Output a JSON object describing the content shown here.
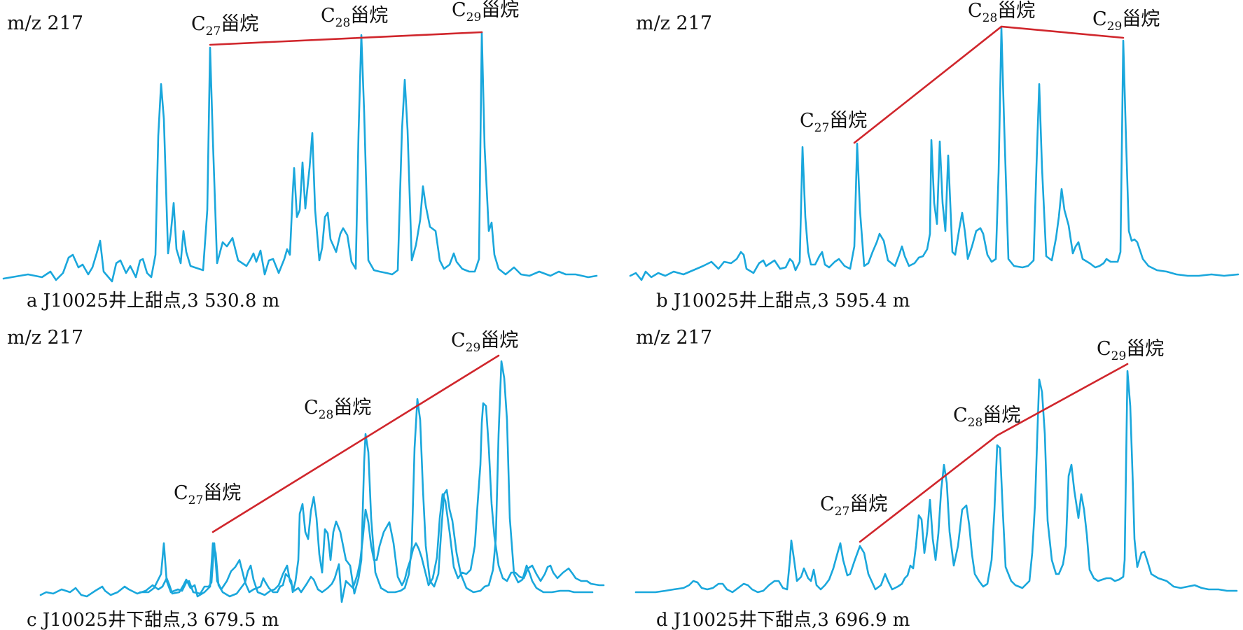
{
  "chart_data": [
    {
      "id": "a",
      "type": "line",
      "ion": "m/z 217",
      "caption": "a J10025井上甜点,3 530.8 m",
      "peaks": [
        {
          "name": "C27甾烷",
          "base": "C",
          "sub": "27",
          "suffix": "甾烷",
          "value": 0.93
        },
        {
          "name": "C28甾烷",
          "base": "C",
          "sub": "28",
          "suffix": "甾烷",
          "value": 0.98
        },
        {
          "name": "C29甾烷",
          "base": "C",
          "sub": "29",
          "suffix": "甾烷",
          "value": 1.0
        }
      ],
      "trend": [
        "C27甾烷",
        "C28甾烷",
        "C29甾烷"
      ]
    },
    {
      "id": "b",
      "type": "line",
      "ion": "m/z 217",
      "caption": "b J10025井上甜点,3 595.4 m",
      "peaks": [
        {
          "name": "C27甾烷",
          "base": "C",
          "sub": "27",
          "suffix": "甾烷",
          "value": 0.53
        },
        {
          "name": "C28甾烷",
          "base": "C",
          "sub": "28",
          "suffix": "甾烷",
          "value": 1.0
        },
        {
          "name": "C29甾烷",
          "base": "C",
          "sub": "29",
          "suffix": "甾烷",
          "value": 0.96
        }
      ],
      "trend": [
        "C27甾烷",
        "C28甾烷",
        "C29甾烷"
      ]
    },
    {
      "id": "c",
      "type": "line",
      "ion": "m/z 217",
      "caption": "c J10025井下甜点,3 679.5 m",
      "peaks": [
        {
          "name": "C27甾烷",
          "base": "C",
          "sub": "27",
          "suffix": "甾烷",
          "value": 0.24
        },
        {
          "name": "C28甾烷",
          "base": "C",
          "sub": "28",
          "suffix": "甾烷",
          "value": 0.65
        },
        {
          "name": "C29甾烷",
          "base": "C",
          "sub": "29",
          "suffix": "甾烷",
          "value": 1.0
        }
      ],
      "trend": [
        "C27甾烷",
        "C28甾烷",
        "C29甾烷"
      ]
    },
    {
      "id": "d",
      "type": "line",
      "ion": "m/z 217",
      "caption": "d J10025井下甜点,3 696.9 m",
      "peaks": [
        {
          "name": "C27甾烷",
          "base": "C",
          "sub": "27",
          "suffix": "甾烷",
          "value": 0.22
        },
        {
          "name": "C28甾烷",
          "base": "C",
          "sub": "28",
          "suffix": "甾烷",
          "value": 0.68
        },
        {
          "name": "C29甾烷",
          "base": "C",
          "sub": "29",
          "suffix": "甾烷",
          "value": 1.0
        }
      ],
      "trend": [
        "C27甾烷",
        "C28甾烷",
        "C29甾烷"
      ]
    }
  ],
  "colors": {
    "trace": "#1aa7dc",
    "trend_line": "#d0262c",
    "text": "#111111"
  }
}
